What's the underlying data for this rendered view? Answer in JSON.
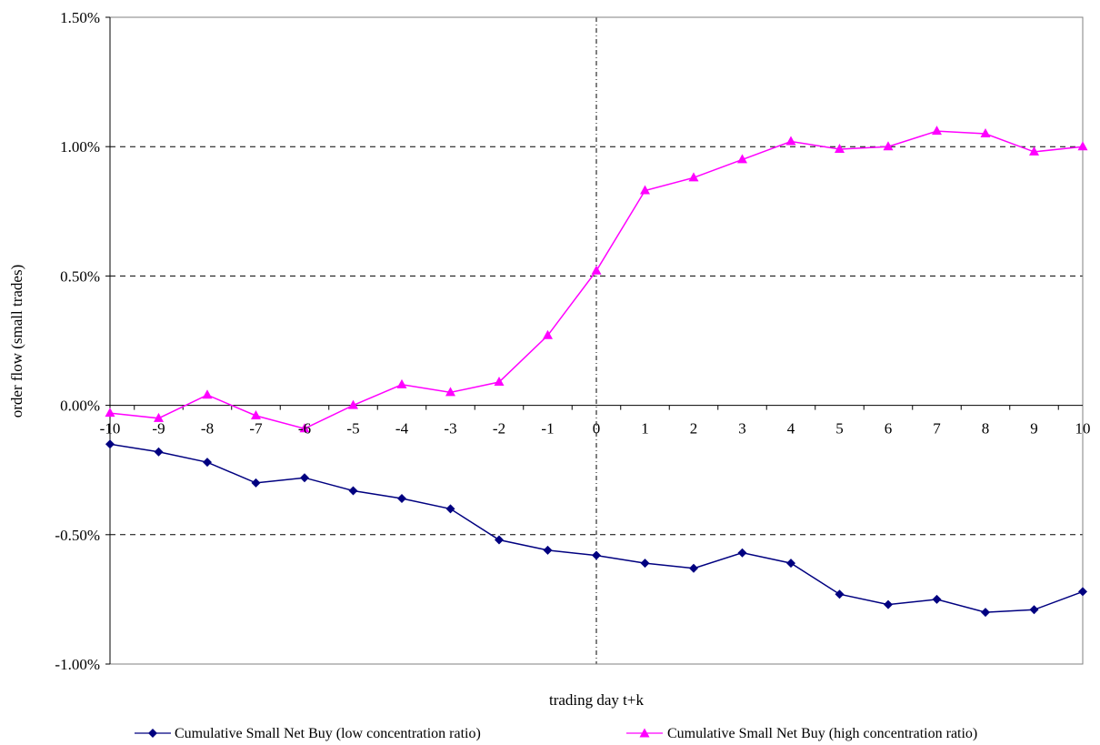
{
  "chart_data": {
    "type": "line",
    "title": "",
    "xlabel": "trading day t+k",
    "ylabel": "order flow (small trades)",
    "x": [
      -10,
      -9,
      -8,
      -7,
      -6,
      -5,
      -4,
      -3,
      -2,
      -1,
      0,
      1,
      2,
      3,
      4,
      5,
      6,
      7,
      8,
      9,
      10
    ],
    "x_tick_labels": [
      "-10",
      "-9",
      "-8",
      "-7",
      "-6",
      "-5",
      "-4",
      "-3",
      "-2",
      "-1",
      "0",
      "1",
      "2",
      "3",
      "4",
      "5",
      "6",
      "7",
      "8",
      "9",
      "10"
    ],
    "ylim": [
      -1.0,
      1.5
    ],
    "y_unit": "%",
    "y_ticks": [
      -1.0,
      -0.5,
      0.0,
      0.5,
      1.0,
      1.5
    ],
    "y_tick_labels": [
      "-1.00%",
      "-0.50%",
      "0.00%",
      "0.50%",
      "1.00%",
      "1.50%"
    ],
    "grid": "horizontal dashed at -0.50%, 0.50%, 1.00%",
    "reference_line": "vertical dash-dot at x = 0",
    "legend_position": "bottom",
    "series": [
      {
        "name": "Cumulative Small Net Buy (low concentration ratio)",
        "color": "#000080",
        "marker": "diamond",
        "values": [
          -0.15,
          -0.18,
          -0.22,
          -0.3,
          -0.28,
          -0.33,
          -0.36,
          -0.4,
          -0.52,
          -0.56,
          -0.58,
          -0.61,
          -0.63,
          -0.57,
          -0.61,
          -0.73,
          -0.77,
          -0.75,
          -0.8,
          -0.79,
          -0.72
        ]
      },
      {
        "name": "Cumulative Small Net Buy (high concentration ratio)",
        "color": "#ff00ff",
        "marker": "triangle",
        "values": [
          -0.03,
          -0.05,
          0.04,
          -0.04,
          -0.09,
          0.0,
          0.08,
          0.05,
          0.09,
          0.27,
          0.52,
          0.83,
          0.88,
          0.95,
          1.02,
          0.99,
          1.0,
          1.06,
          1.05,
          0.98,
          1.0
        ]
      }
    ]
  }
}
